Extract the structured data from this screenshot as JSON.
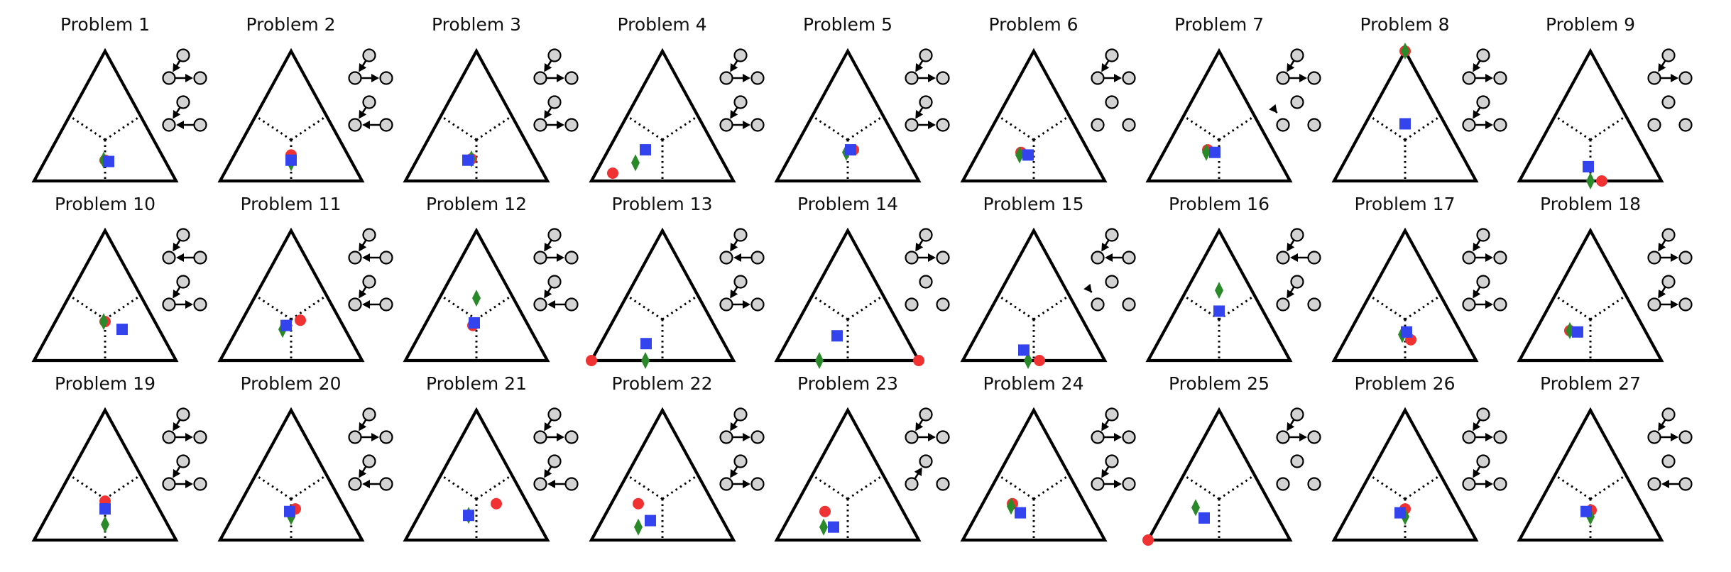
{
  "colors": {
    "marker_a": "#f03232",
    "marker_b": "#3344ee",
    "marker_c": "#2a8a2a",
    "line": "#000000",
    "node_fill": "#d3d3d3"
  },
  "panels": [
    {
      "title": "Problem 1",
      "r": [
        0.42,
        0.42,
        0.16
      ],
      "b": [
        0.4,
        0.45,
        0.15
      ],
      "g": [
        0.43,
        0.41,
        0.16
      ],
      "graphs": [
        [
          "up",
          "right"
        ],
        [
          "up",
          "left"
        ]
      ]
    },
    {
      "title": "Problem 2",
      "r": [
        0.4,
        0.4,
        0.2
      ],
      "b": [
        0.42,
        0.42,
        0.16
      ],
      "g": [
        0.43,
        0.43,
        0.14
      ],
      "graphs": [
        [
          "up",
          "right"
        ],
        [
          "up",
          "left"
        ]
      ]
    },
    {
      "title": "Problem 3",
      "r": [
        0.45,
        0.38,
        0.17
      ],
      "b": [
        0.48,
        0.36,
        0.16
      ],
      "g": [
        0.45,
        0.38,
        0.17
      ],
      "graphs": [
        [
          "up",
          "right"
        ],
        [
          "up",
          "right"
        ]
      ]
    },
    {
      "title": "Problem 4",
      "r": [
        0.82,
        0.12,
        0.06
      ],
      "b": [
        0.5,
        0.26,
        0.24
      ],
      "g": [
        0.62,
        0.24,
        0.14
      ],
      "graphs": [
        [
          "up",
          "right"
        ],
        [
          "up",
          "right"
        ]
      ]
    },
    {
      "title": "Problem 5",
      "r": [
        0.34,
        0.42,
        0.24
      ],
      "b": [
        0.36,
        0.4,
        0.24
      ],
      "g": [
        0.4,
        0.38,
        0.22
      ],
      "graphs": [
        [
          "up",
          "right"
        ],
        [
          "up",
          "right"
        ]
      ]
    },
    {
      "title": "Problem 6",
      "r": [
        0.48,
        0.3,
        0.22
      ],
      "b": [
        0.44,
        0.36,
        0.2
      ],
      "g": [
        0.5,
        0.3,
        0.2
      ],
      "graphs": [
        [
          "up",
          "right"
        ],
        [
          "none",
          "none"
        ]
      ]
    },
    {
      "title": "Problem 7",
      "r": [
        0.46,
        0.3,
        0.24
      ],
      "b": [
        0.42,
        0.36,
        0.22
      ],
      "g": [
        0.48,
        0.3,
        0.22
      ],
      "graphs": [
        [
          "up",
          "right"
        ],
        [
          "down-none",
          "none"
        ]
      ]
    },
    {
      "title": "Problem 8",
      "r": [
        0.0,
        0.0,
        1.0
      ],
      "b": [
        0.28,
        0.28,
        0.44
      ],
      "g": [
        0.0,
        0.0,
        1.0
      ],
      "graphs": [
        [
          "up",
          "right"
        ],
        [
          "up",
          "right"
        ]
      ]
    },
    {
      "title": "Problem 9",
      "r": [
        0.42,
        0.58,
        0.0
      ],
      "b": [
        0.46,
        0.43,
        0.11
      ],
      "g": [
        0.5,
        0.5,
        0.0
      ],
      "graphs": [
        [
          "up",
          "right"
        ],
        [
          "none",
          "none"
        ]
      ]
    },
    {
      "title": "Problem 10",
      "r": [
        0.35,
        0.35,
        0.3
      ],
      "b": [
        0.26,
        0.5,
        0.24
      ],
      "g": [
        0.36,
        0.34,
        0.3
      ],
      "graphs": [
        [
          "up",
          "left"
        ],
        [
          "up",
          "right"
        ]
      ]
    },
    {
      "title": "Problem 11",
      "r": [
        0.28,
        0.41,
        0.31
      ],
      "b": [
        0.4,
        0.33,
        0.27
      ],
      "g": [
        0.44,
        0.32,
        0.24
      ],
      "graphs": [
        [
          "up",
          "left"
        ],
        [
          "up",
          "left"
        ]
      ]
    },
    {
      "title": "Problem 12",
      "r": [
        0.39,
        0.34,
        0.27
      ],
      "b": [
        0.37,
        0.34,
        0.29
      ],
      "g": [
        0.26,
        0.26,
        0.48
      ],
      "graphs": [
        [
          "up",
          "right"
        ],
        [
          "up",
          "left"
        ]
      ]
    },
    {
      "title": "Problem 13",
      "r": [
        1.0,
        0.0,
        0.0
      ],
      "b": [
        0.55,
        0.32,
        0.13
      ],
      "g": [
        0.62,
        0.38,
        0.0
      ],
      "graphs": [
        [
          "up",
          "left"
        ],
        [
          "up",
          "right"
        ]
      ]
    },
    {
      "title": "Problem 14",
      "r": [
        0.0,
        1.0,
        0.0
      ],
      "b": [
        0.48,
        0.33,
        0.19
      ],
      "g": [
        0.7,
        0.3,
        0.0
      ],
      "graphs": [
        [
          "up",
          "right"
        ],
        [
          "none",
          "none"
        ]
      ]
    },
    {
      "title": "Problem 15",
      "r": [
        0.46,
        0.54,
        0.0
      ],
      "b": [
        0.53,
        0.39,
        0.08
      ],
      "g": [
        0.54,
        0.46,
        0.0
      ],
      "graphs": [
        [
          "up",
          "left"
        ],
        [
          "down-none",
          "none"
        ]
      ]
    },
    {
      "title": "Problem 16",
      "r": [
        0.31,
        0.31,
        0.38
      ],
      "b": [
        0.31,
        0.31,
        0.38
      ],
      "g": [
        0.23,
        0.23,
        0.54
      ],
      "graphs": [
        [
          "up",
          "left"
        ],
        [
          "up",
          "none"
        ]
      ]
    },
    {
      "title": "Problem 17",
      "r": [
        0.38,
        0.46,
        0.16
      ],
      "b": [
        0.38,
        0.4,
        0.22
      ],
      "g": [
        0.42,
        0.38,
        0.2
      ],
      "graphs": [
        [
          "up",
          "right"
        ],
        [
          "up",
          "right"
        ]
      ]
    },
    {
      "title": "Problem 18",
      "r": [
        0.53,
        0.24,
        0.23
      ],
      "b": [
        0.48,
        0.3,
        0.22
      ],
      "g": [
        0.53,
        0.24,
        0.23
      ],
      "graphs": [
        [
          "up",
          "right"
        ],
        [
          "up",
          "right"
        ]
      ]
    },
    {
      "title": "Problem 19",
      "r": [
        0.35,
        0.35,
        0.3
      ],
      "b": [
        0.38,
        0.38,
        0.24
      ],
      "g": [
        0.44,
        0.44,
        0.12
      ],
      "graphs": [
        [
          "up",
          "right"
        ],
        [
          "up",
          "right"
        ]
      ]
    },
    {
      "title": "Problem 20",
      "r": [
        0.35,
        0.41,
        0.24
      ],
      "b": [
        0.4,
        0.38,
        0.22
      ],
      "g": [
        0.41,
        0.41,
        0.18
      ],
      "graphs": [
        [
          "up",
          "right"
        ],
        [
          "up",
          "left"
        ]
      ]
    },
    {
      "title": "Problem 21",
      "r": [
        0.22,
        0.5,
        0.28
      ],
      "b": [
        0.46,
        0.35,
        0.19
      ],
      "g": [
        0.46,
        0.35,
        0.19
      ],
      "graphs": [
        [
          "up",
          "right"
        ],
        [
          "up",
          "left"
        ]
      ]
    },
    {
      "title": "Problem 22",
      "r": [
        0.53,
        0.19,
        0.28
      ],
      "b": [
        0.51,
        0.34,
        0.15
      ],
      "g": [
        0.62,
        0.28,
        0.1
      ],
      "graphs": [
        [
          "up",
          "right"
        ],
        [
          "up",
          "right"
        ]
      ]
    },
    {
      "title": "Problem 23",
      "r": [
        0.55,
        0.23,
        0.22
      ],
      "b": [
        0.55,
        0.35,
        0.1
      ],
      "g": [
        0.62,
        0.28,
        0.1
      ],
      "graphs": [
        [
          "up",
          "right"
        ],
        [
          "down",
          "none"
        ]
      ]
    },
    {
      "title": "Problem 24",
      "r": [
        0.51,
        0.21,
        0.28
      ],
      "b": [
        0.49,
        0.3,
        0.21
      ],
      "g": [
        0.53,
        0.21,
        0.26
      ],
      "graphs": [
        [
          "up",
          "right"
        ],
        [
          "up",
          "right"
        ]
      ]
    },
    {
      "title": "Problem 25",
      "r": [
        1.0,
        0.0,
        0.0
      ],
      "b": [
        0.52,
        0.31,
        0.17
      ],
      "g": [
        0.54,
        0.21,
        0.25
      ],
      "graphs": [
        [
          "up",
          "right"
        ],
        [
          "none",
          "none"
        ]
      ]
    },
    {
      "title": "Problem 26",
      "r": [
        0.38,
        0.38,
        0.24
      ],
      "b": [
        0.43,
        0.36,
        0.21
      ],
      "g": [
        0.41,
        0.41,
        0.18
      ],
      "graphs": [
        [
          "up",
          "right"
        ],
        [
          "up",
          "right"
        ]
      ]
    },
    {
      "title": "Problem 27",
      "r": [
        0.38,
        0.39,
        0.23
      ],
      "b": [
        0.42,
        0.36,
        0.22
      ],
      "g": [
        0.41,
        0.41,
        0.18
      ],
      "graphs": [
        [
          "up",
          "right"
        ],
        [
          "none",
          "left"
        ]
      ]
    }
  ]
}
